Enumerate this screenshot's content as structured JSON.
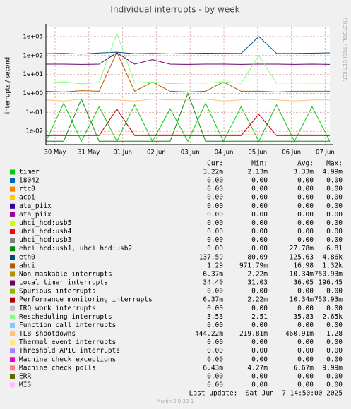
{
  "chart_data": {
    "type": "line",
    "title": "Individual interrupts - by week",
    "y_label": "interrupts / second",
    "watermark": "RRDTOOL / TOBI OETIKER",
    "log_scale": true,
    "grid": true,
    "ylim": [
      0.002,
      3300
    ],
    "yticks": [
      {
        "value": 1000,
        "label": "1e+03"
      },
      {
        "value": 100,
        "label": "1e+02"
      },
      {
        "value": 10,
        "label": "1e+01"
      },
      {
        "value": 1,
        "label": "1e+00"
      },
      {
        "value": 0.1,
        "label": "1e-01"
      },
      {
        "value": 0.01,
        "label": "1e-02"
      }
    ],
    "x_labels": [
      "30 May",
      "31 May",
      "01 Jun",
      "02 Jun",
      "03 Jun",
      "04 Jun",
      "05 Jun",
      "06 Jun",
      "07 Jun"
    ],
    "stats_headers": [
      "Cur:",
      "Min:",
      "Avg:",
      "Max:"
    ],
    "series": [
      {
        "name": "timer",
        "color": "#00cc00",
        "stats": [
          "3.22m",
          "2.13m",
          "3.33m",
          "4.99m"
        ],
        "values": [
          0.003,
          0.3,
          0.003,
          0.2,
          0.003,
          0.25,
          0.003,
          0.15,
          0.003,
          0.3,
          0.003,
          0.2,
          0.003,
          0.25,
          0.003,
          0.2,
          0.003
        ]
      },
      {
        "name": "i8042",
        "color": "#0066b3",
        "stats": [
          "0.00",
          "0.00",
          "0.00",
          "0.00"
        ]
      },
      {
        "name": "rtc0",
        "color": "#ff8000",
        "stats": [
          "0.00",
          "0.00",
          "0.00",
          "0.00"
        ]
      },
      {
        "name": "acpi",
        "color": "#ffcc00",
        "stats": [
          "0.00",
          "0.00",
          "0.00",
          "0.00"
        ]
      },
      {
        "name": "ata_piix",
        "color": "#330099",
        "stats": [
          "0.00",
          "0.00",
          "0.00",
          "0.00"
        ]
      },
      {
        "name": "ata_piix",
        "color": "#990099",
        "stats": [
          "0.00",
          "0.00",
          "0.00",
          "0.00"
        ]
      },
      {
        "name": "uhci_hcd:usb5",
        "color": "#ccff00",
        "stats": [
          "0.00",
          "0.00",
          "0.00",
          "0.00"
        ]
      },
      {
        "name": "uhci_hcd:usb4",
        "color": "#ff0000",
        "stats": [
          "0.00",
          "0.00",
          "0.00",
          "0.00"
        ]
      },
      {
        "name": "uhci_hcd:usb3",
        "color": "#808080",
        "stats": [
          "0.00",
          "0.00",
          "0.00",
          "0.00"
        ]
      },
      {
        "name": "ehci_hcd:usb1, uhci_hcd:usb2",
        "color": "#008f00",
        "stats": [
          "0.00",
          "0.00",
          "27.78m",
          "6.81"
        ],
        "values": [
          0.003,
          0.003,
          0.5,
          0.003,
          0.003,
          0.003,
          0.003,
          0.003,
          1,
          0.003,
          0.003,
          0.003,
          0.003,
          0.003,
          0.003,
          0.003,
          0.003
        ]
      },
      {
        "name": "eth0",
        "color": "#00487d",
        "stats": [
          "137.59",
          "80.09",
          "125.63",
          "4.86k"
        ],
        "values": [
          125,
          130,
          120,
          135,
          150,
          125,
          130,
          122,
          128,
          132,
          130,
          128,
          1000,
          130,
          128,
          132,
          138
        ]
      },
      {
        "name": "ahci",
        "color": "#b35a00",
        "stats": [
          "1.29",
          "971.79m",
          "16.98",
          "1.32k"
        ],
        "values": [
          1.3,
          1.2,
          1.4,
          1.3,
          150,
          1.3,
          4,
          1.3,
          1.2,
          1.3,
          4,
          1.3,
          1.3,
          1.2,
          1.3,
          1.3,
          1.3
        ]
      },
      {
        "name": "Non-maskable interrupts",
        "color": "#b38f00",
        "stats": [
          "6.37m",
          "2.22m",
          "10.34m",
          "750.93m"
        ]
      },
      {
        "name": "Local timer interrupts",
        "color": "#6b006b",
        "stats": [
          "34.40",
          "31.03",
          "36.05",
          "196.45"
        ],
        "values": [
          35,
          35,
          34,
          35,
          140,
          35,
          60,
          35,
          34,
          35,
          35,
          34,
          35,
          35,
          34,
          35,
          34
        ]
      },
      {
        "name": "Spurious interrupts",
        "color": "#8fb300",
        "stats": [
          "0.00",
          "0.00",
          "0.00",
          "0.00"
        ]
      },
      {
        "name": "Performance monitoring interrupts",
        "color": "#b30000",
        "stats": [
          "6.37m",
          "2.22m",
          "10.34m",
          "750.93m"
        ],
        "values": [
          0.006,
          0.006,
          0.006,
          0.006,
          0.15,
          0.006,
          0.006,
          0.006,
          0.006,
          0.006,
          0.006,
          0.006,
          0.08,
          0.006,
          0.006,
          0.006,
          0.006
        ]
      },
      {
        "name": "IRQ work interrupts",
        "color": "#bebebe",
        "stats": [
          "0.00",
          "0.00",
          "0.00",
          "0.00"
        ]
      },
      {
        "name": "Rescheduling interrupts",
        "color": "#80ff80",
        "stats": [
          "3.53",
          "2.51",
          "35.83",
          "2.65k"
        ],
        "values": [
          3.5,
          4,
          3.2,
          3.8,
          1500,
          3.5,
          4,
          3.3,
          3.6,
          3.5,
          4,
          3.4,
          100,
          3.5,
          3.6,
          3.5,
          3.5
        ]
      },
      {
        "name": "Function call interrupts",
        "color": "#80c9ff",
        "stats": [
          "0.00",
          "0.00",
          "0.00",
          "0.00"
        ]
      },
      {
        "name": "TLB shootdowns",
        "color": "#ffc080",
        "stats": [
          "444.22m",
          "219.81m",
          "460.91m",
          "1.28"
        ],
        "values": [
          0.45,
          0.4,
          0.5,
          0.45,
          0.45,
          0.4,
          0.5,
          0.45,
          0.45,
          0.5,
          0.4,
          0.45,
          0.5,
          0.45,
          0.4,
          0.45,
          0.45
        ]
      },
      {
        "name": "Thermal event interrupts",
        "color": "#ffe680",
        "stats": [
          "0.00",
          "0.00",
          "0.00",
          "0.00"
        ]
      },
      {
        "name": "Threshold APIC interrupts",
        "color": "#aa80ff",
        "stats": [
          "0.00",
          "0.00",
          "0.00",
          "0.00"
        ]
      },
      {
        "name": "Machine check exceptions",
        "color": "#ee00cc",
        "stats": [
          "0.00",
          "0.00",
          "0.00",
          "0.00"
        ]
      },
      {
        "name": "Machine check polls",
        "color": "#ff8080",
        "stats": [
          "6.43m",
          "4.27m",
          "6.67m",
          "9.99m"
        ],
        "values": [
          0.0065,
          0.0065,
          0.0062,
          0.0066,
          0.0065,
          0.0064,
          0.0065,
          0.0066,
          0.0065,
          0.0064,
          0.0065,
          0.0066,
          0.0065,
          0.0064,
          0.0065,
          0.0065,
          0.0064
        ]
      },
      {
        "name": "ERR",
        "color": "#666600",
        "stats": [
          "0.00",
          "0.00",
          "0.00",
          "0.00"
        ]
      },
      {
        "name": "MIS",
        "color": "#ffbfff",
        "stats": [
          "0.00",
          "0.00",
          "0.00",
          "0.00"
        ]
      }
    ],
    "last_update": "Last update:  Sat Jun  7 14:50:00 2025",
    "footer": "Munin 2.0.33-1"
  }
}
